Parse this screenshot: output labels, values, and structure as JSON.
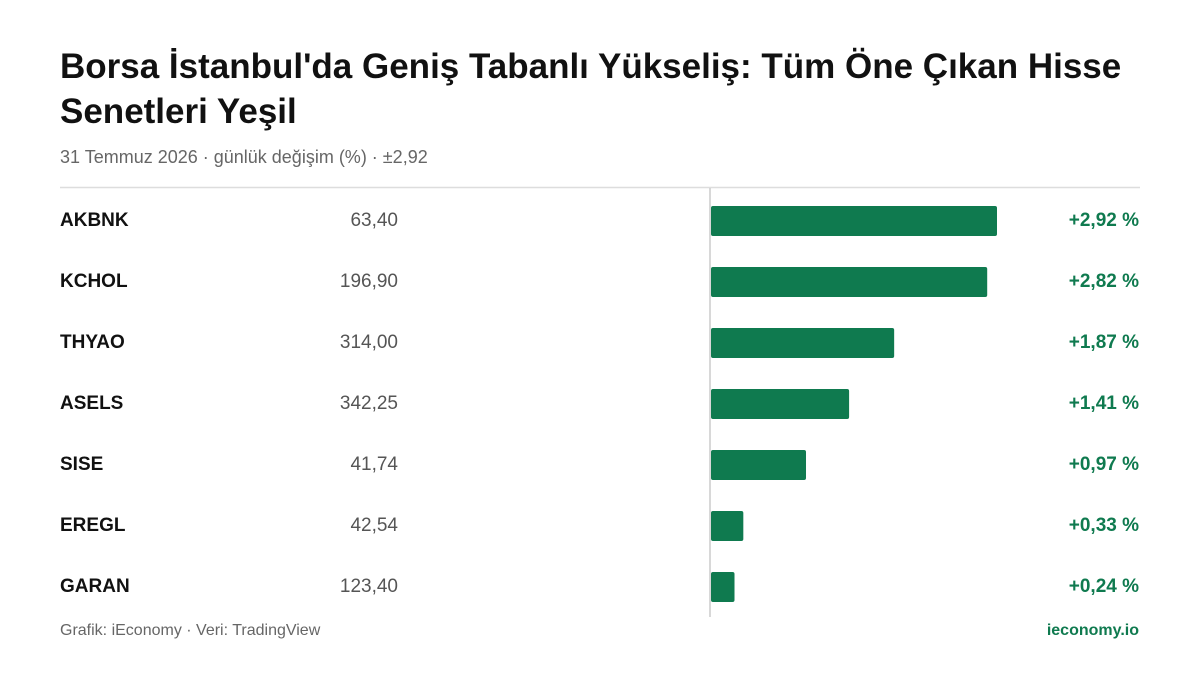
{
  "chart_data": {
    "type": "bar",
    "orientation": "horizontal",
    "title": "Borsa İstanbul'da Geniş Tabanlı Yükseliş: Tüm Öne Çıkan Hisse Senetleri Yeşil",
    "subtitle": "31 Temmuz 2026 · günlük değişim (%) · ±2,92",
    "categories": [
      "AKBNK",
      "KCHOL",
      "THYAO",
      "ASELS",
      "SISE",
      "EREGL",
      "GARAN"
    ],
    "prices": [
      "63,40",
      "196,90",
      "314,00",
      "342,25",
      "41,74",
      "42,54",
      "123,40"
    ],
    "values": [
      2.92,
      2.82,
      1.87,
      1.41,
      0.97,
      0.33,
      0.24
    ],
    "value_labels": [
      "+2,92 %",
      "+2,82 %",
      "+1,87 %",
      "+1,41 %",
      "+0,97 %",
      "+0,33 %",
      "+0,24 %"
    ],
    "color": "#0f7a4f",
    "xlim": [
      -2.92,
      2.92
    ],
    "source": "Grafik: iEconomy · Veri: TradingView",
    "site": "ieconomy.io"
  }
}
